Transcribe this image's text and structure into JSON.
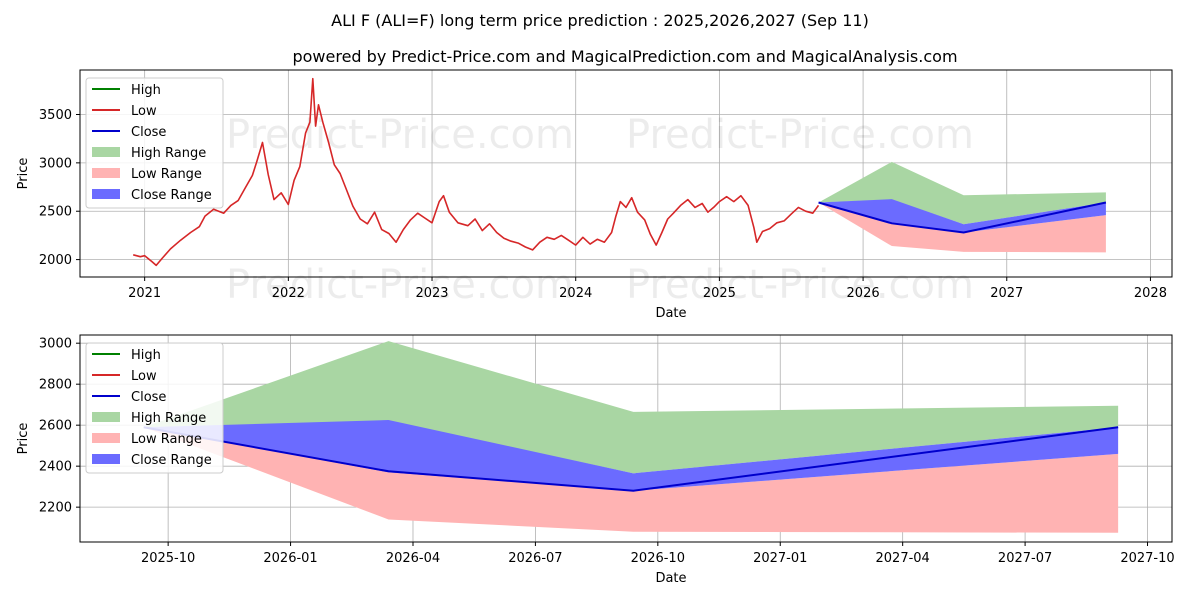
{
  "title": "ALI F (ALI=F) long term price prediction : 2025,2026,2027 (Sep 11)",
  "subtitle": "powered by Predict-Price.com and MagicalPrediction.com and MagicalAnalysis.com",
  "watermark": "Predict-Price.com",
  "colors": {
    "high": "#008000",
    "low": "#d62728",
    "close": "#0000cc",
    "high_range": "#a9d6a3",
    "low_range": "#ffb3b3",
    "close_range": "#6b6bff",
    "grid": "#b0b0b0"
  },
  "chart_data": [
    {
      "type": "line",
      "xlabel": "Date",
      "ylabel": "Price",
      "xlim": [
        2020.55,
        2028.15
      ],
      "ylim": [
        1820,
        3960
      ],
      "xticks": [
        {
          "v": 2021,
          "label": "2021"
        },
        {
          "v": 2022,
          "label": "2022"
        },
        {
          "v": 2023,
          "label": "2023"
        },
        {
          "v": 2024,
          "label": "2024"
        },
        {
          "v": 2025,
          "label": "2025"
        },
        {
          "v": 2026,
          "label": "2026"
        },
        {
          "v": 2027,
          "label": "2027"
        },
        {
          "v": 2028,
          "label": "2028"
        }
      ],
      "yticks": [
        {
          "v": 2000,
          "label": "2000"
        },
        {
          "v": 2500,
          "label": "2500"
        },
        {
          "v": 3000,
          "label": "3000"
        },
        {
          "v": 3500,
          "label": "3500"
        }
      ],
      "legend": [
        "High",
        "Low",
        "Close",
        "High Range",
        "Low Range",
        "Close Range"
      ],
      "history_low": [
        [
          2020.92,
          2050
        ],
        [
          2020.97,
          2030
        ],
        [
          2021.0,
          2040
        ],
        [
          2021.05,
          1980
        ],
        [
          2021.08,
          1940
        ],
        [
          2021.12,
          2010
        ],
        [
          2021.18,
          2110
        ],
        [
          2021.25,
          2200
        ],
        [
          2021.32,
          2280
        ],
        [
          2021.38,
          2340
        ],
        [
          2021.42,
          2450
        ],
        [
          2021.48,
          2520
        ],
        [
          2021.55,
          2480
        ],
        [
          2021.6,
          2560
        ],
        [
          2021.65,
          2610
        ],
        [
          2021.7,
          2740
        ],
        [
          2021.75,
          2870
        ],
        [
          2021.78,
          3010
        ],
        [
          2021.82,
          3210
        ],
        [
          2021.86,
          2880
        ],
        [
          2021.9,
          2620
        ],
        [
          2021.95,
          2690
        ],
        [
          2022.0,
          2570
        ],
        [
          2022.04,
          2820
        ],
        [
          2022.08,
          2960
        ],
        [
          2022.12,
          3310
        ],
        [
          2022.15,
          3420
        ],
        [
          2022.17,
          3870
        ],
        [
          2022.19,
          3380
        ],
        [
          2022.21,
          3600
        ],
        [
          2022.24,
          3420
        ],
        [
          2022.28,
          3210
        ],
        [
          2022.32,
          2980
        ],
        [
          2022.36,
          2890
        ],
        [
          2022.4,
          2740
        ],
        [
          2022.45,
          2550
        ],
        [
          2022.5,
          2420
        ],
        [
          2022.55,
          2370
        ],
        [
          2022.6,
          2490
        ],
        [
          2022.65,
          2310
        ],
        [
          2022.7,
          2270
        ],
        [
          2022.75,
          2180
        ],
        [
          2022.8,
          2310
        ],
        [
          2022.85,
          2410
        ],
        [
          2022.9,
          2480
        ],
        [
          2022.95,
          2430
        ],
        [
          2023.0,
          2380
        ],
        [
          2023.05,
          2600
        ],
        [
          2023.08,
          2660
        ],
        [
          2023.12,
          2490
        ],
        [
          2023.18,
          2380
        ],
        [
          2023.25,
          2350
        ],
        [
          2023.3,
          2420
        ],
        [
          2023.35,
          2300
        ],
        [
          2023.4,
          2370
        ],
        [
          2023.45,
          2280
        ],
        [
          2023.5,
          2220
        ],
        [
          2023.55,
          2190
        ],
        [
          2023.6,
          2170
        ],
        [
          2023.65,
          2130
        ],
        [
          2023.7,
          2100
        ],
        [
          2023.75,
          2180
        ],
        [
          2023.8,
          2230
        ],
        [
          2023.85,
          2210
        ],
        [
          2023.9,
          2250
        ],
        [
          2023.95,
          2200
        ],
        [
          2024.0,
          2150
        ],
        [
          2024.05,
          2230
        ],
        [
          2024.1,
          2160
        ],
        [
          2024.15,
          2210
        ],
        [
          2024.2,
          2180
        ],
        [
          2024.25,
          2280
        ],
        [
          2024.28,
          2450
        ],
        [
          2024.31,
          2600
        ],
        [
          2024.35,
          2540
        ],
        [
          2024.39,
          2640
        ],
        [
          2024.43,
          2490
        ],
        [
          2024.48,
          2410
        ],
        [
          2024.52,
          2260
        ],
        [
          2024.56,
          2150
        ],
        [
          2024.6,
          2280
        ],
        [
          2024.64,
          2420
        ],
        [
          2024.68,
          2480
        ],
        [
          2024.73,
          2560
        ],
        [
          2024.78,
          2620
        ],
        [
          2024.83,
          2540
        ],
        [
          2024.88,
          2580
        ],
        [
          2024.92,
          2490
        ],
        [
          2024.96,
          2540
        ],
        [
          2025.0,
          2600
        ],
        [
          2025.05,
          2650
        ],
        [
          2025.1,
          2600
        ],
        [
          2025.15,
          2660
        ],
        [
          2025.2,
          2560
        ],
        [
          2025.24,
          2330
        ],
        [
          2025.26,
          2180
        ],
        [
          2025.3,
          2290
        ],
        [
          2025.35,
          2320
        ],
        [
          2025.4,
          2380
        ],
        [
          2025.45,
          2400
        ],
        [
          2025.5,
          2470
        ],
        [
          2025.55,
          2540
        ],
        [
          2025.6,
          2500
        ],
        [
          2025.65,
          2480
        ],
        [
          2025.69,
          2560
        ]
      ],
      "forecast_x": [
        2025.69,
        2026.2,
        2026.7,
        2027.69
      ],
      "close": [
        2590,
        2375,
        2280,
        2590
      ],
      "high_range": {
        "upper": [
          2590,
          3010,
          2665,
          2695
        ],
        "lower": [
          2590,
          2620,
          2365,
          2590
        ]
      },
      "low_range": {
        "upper": [
          2590,
          2380,
          2280,
          2460
        ],
        "lower": [
          2590,
          2140,
          2080,
          2075
        ]
      },
      "close_range": {
        "upper": [
          2590,
          2625,
          2365,
          2590
        ],
        "lower": [
          2590,
          2370,
          2280,
          2460
        ]
      }
    },
    {
      "type": "line",
      "xlabel": "Date",
      "ylabel": "Price",
      "xlim": [
        2025.57,
        2027.8
      ],
      "ylim": [
        2030,
        3040
      ],
      "xticks": [
        {
          "v": 2025.75,
          "label": "2025-10"
        },
        {
          "v": 2026.0,
          "label": "2026-01"
        },
        {
          "v": 2026.25,
          "label": "2026-04"
        },
        {
          "v": 2026.5,
          "label": "2026-07"
        },
        {
          "v": 2026.75,
          "label": "2026-10"
        },
        {
          "v": 2027.0,
          "label": "2027-01"
        },
        {
          "v": 2027.25,
          "label": "2027-04"
        },
        {
          "v": 2027.5,
          "label": "2027-07"
        },
        {
          "v": 2027.75,
          "label": "2027-10"
        }
      ],
      "yticks": [
        {
          "v": 2200,
          "label": "2200"
        },
        {
          "v": 2400,
          "label": "2400"
        },
        {
          "v": 2600,
          "label": "2600"
        },
        {
          "v": 2800,
          "label": "2800"
        },
        {
          "v": 3000,
          "label": "3000"
        }
      ],
      "legend": [
        "High",
        "Low",
        "Close",
        "High Range",
        "Low Range",
        "Close Range"
      ],
      "forecast_x": [
        2025.7,
        2026.2,
        2026.7,
        2027.69
      ],
      "close": [
        2590,
        2375,
        2280,
        2590
      ],
      "high_range": {
        "upper": [
          2590,
          3010,
          2665,
          2695
        ],
        "lower": [
          2590,
          2620,
          2365,
          2590
        ]
      },
      "low_range": {
        "upper": [
          2590,
          2380,
          2280,
          2460
        ],
        "lower": [
          2590,
          2140,
          2080,
          2075
        ]
      },
      "close_range": {
        "upper": [
          2590,
          2625,
          2365,
          2590
        ],
        "lower": [
          2590,
          2370,
          2280,
          2460
        ]
      }
    }
  ]
}
